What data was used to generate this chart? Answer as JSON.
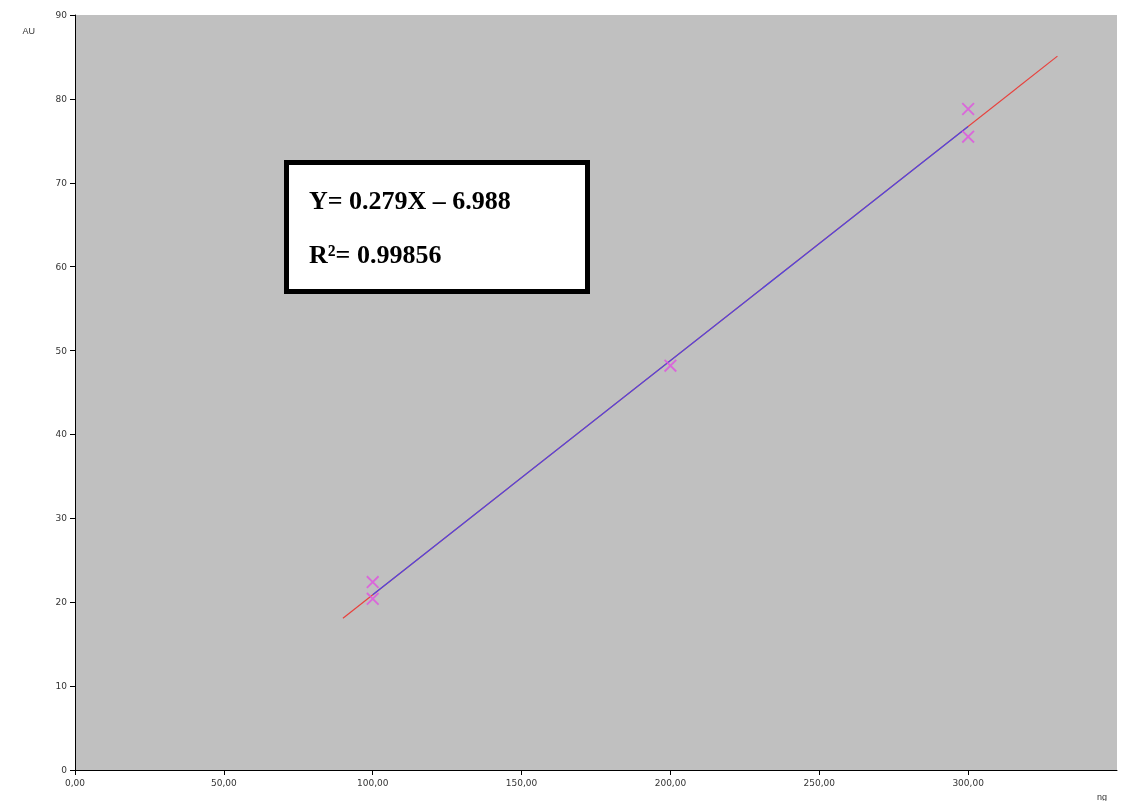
{
  "chart_data": {
    "type": "scatter",
    "xlabel": "ng",
    "ylabel": "AU",
    "annotations": [
      "Y= 0.279X – 6.988",
      "R²= 0.99856"
    ],
    "xlim": [
      0,
      350
    ],
    "xticks": [
      {
        "value": 0,
        "label": "0,00"
      },
      {
        "value": 50,
        "label": "50,00"
      },
      {
        "value": 100,
        "label": "100,00"
      },
      {
        "value": 150,
        "label": "150,00"
      },
      {
        "value": 200,
        "label": "200,00"
      },
      {
        "value": 250,
        "label": "250,00"
      },
      {
        "value": 300,
        "label": "300,00"
      }
    ],
    "ylim": [
      0,
      90
    ],
    "yticks": [
      0,
      10,
      20,
      30,
      40,
      50,
      60,
      70,
      80,
      90
    ],
    "grid": false,
    "marker": "cross",
    "series": [
      {
        "type": "line",
        "color": "#e8403c",
        "x": [
          90,
          330
        ],
        "values": [
          18.1,
          85.1
        ],
        "marker": "none"
      },
      {
        "type": "line",
        "color": "#4848e8",
        "x": [
          100,
          300
        ],
        "values": [
          20.9,
          76.7
        ],
        "marker": "none"
      },
      {
        "color": "#e050e0",
        "x": [
          100,
          100,
          200,
          300,
          300
        ],
        "values": [
          22.4,
          20.4,
          48.2,
          78.8,
          75.5
        ]
      }
    ]
  }
}
